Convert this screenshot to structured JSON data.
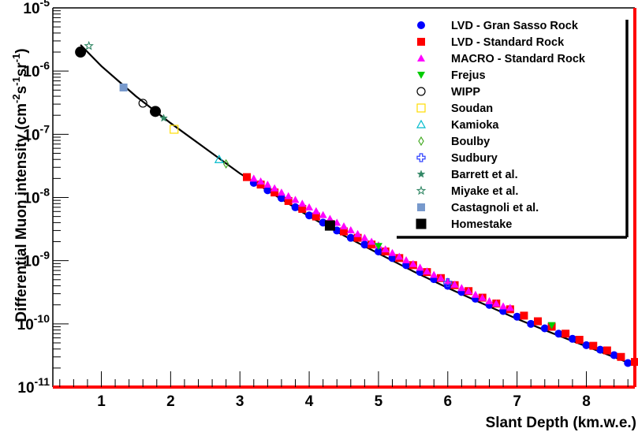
{
  "chart_data": {
    "type": "scatter",
    "xlabel": "Slant Depth (km.w.e.)",
    "ylabel_parts": [
      "Differential Muon intensity (cm",
      "-2",
      "s",
      "-1",
      "sr",
      "-1",
      ")"
    ],
    "xlim": [
      0.3,
      8.7
    ],
    "ylim_log10": [
      -11,
      -5
    ],
    "yscale": "log",
    "x_ticks": [
      1,
      2,
      3,
      4,
      5,
      6,
      7,
      8
    ],
    "y_ticks": [
      {
        "base": "10",
        "exp": "-11"
      },
      {
        "base": "10",
        "exp": "-10"
      },
      {
        "base": "10",
        "exp": "-9"
      },
      {
        "base": "10",
        "exp": "-8"
      },
      {
        "base": "10",
        "exp": "-7"
      },
      {
        "base": "10",
        "exp": "-6"
      },
      {
        "base": "10",
        "exp": "-5"
      }
    ],
    "legend_position": "top-right",
    "fit_curve": [
      [
        0.7,
        2.6e-06
      ],
      [
        1.0,
        1.2e-06
      ],
      [
        1.5,
        4e-07
      ],
      [
        2.0,
        1.5e-07
      ],
      [
        2.5,
        6e-08
      ],
      [
        3.0,
        2.4e-08
      ],
      [
        3.5,
        1.1e-08
      ],
      [
        4.0,
        5e-09
      ],
      [
        4.5,
        2.5e-09
      ],
      [
        5.0,
        1.3e-09
      ],
      [
        5.5,
        6.8e-10
      ],
      [
        6.0,
        3.7e-10
      ],
      [
        6.5,
        2.1e-10
      ],
      [
        7.0,
        1.2e-10
      ],
      [
        7.5,
        7.2e-11
      ],
      [
        8.0,
        4.4e-11
      ],
      [
        8.5,
        2.7e-11
      ],
      [
        8.7,
        2.2e-11
      ]
    ],
    "series": [
      {
        "name": "LVD - Gran Sasso Rock",
        "marker": "circle",
        "color": "#0000ff",
        "filled": true,
        "points": [
          [
            3.2,
            1.7e-08
          ],
          [
            3.4,
            1.3e-08
          ],
          [
            3.6,
            9.8e-09
          ],
          [
            3.8,
            7e-09
          ],
          [
            4.0,
            5.2e-09
          ],
          [
            4.2,
            4e-09
          ],
          [
            4.4,
            3e-09
          ],
          [
            4.6,
            2.3e-09
          ],
          [
            4.8,
            1.8e-09
          ],
          [
            5.0,
            1.4e-09
          ],
          [
            5.2,
            1.1e-09
          ],
          [
            5.4,
            8.5e-10
          ],
          [
            5.6,
            6.6e-10
          ],
          [
            5.8,
            5.1e-10
          ],
          [
            6.0,
            4e-10
          ],
          [
            6.2,
            3.2e-10
          ],
          [
            6.4,
            2.5e-10
          ],
          [
            6.6,
            2e-10
          ],
          [
            6.8,
            1.6e-10
          ],
          [
            7.0,
            1.3e-10
          ],
          [
            7.2,
            1e-10
          ],
          [
            7.4,
            8.5e-11
          ],
          [
            7.6,
            7e-11
          ],
          [
            7.8,
            5.8e-11
          ],
          [
            8.0,
            4.6e-11
          ],
          [
            8.2,
            3.9e-11
          ],
          [
            8.4,
            3.2e-11
          ],
          [
            8.6,
            2.4e-11
          ]
        ]
      },
      {
        "name": "LVD - Standard Rock",
        "marker": "square",
        "color": "#ff0000",
        "filled": true,
        "points": [
          [
            3.1,
            2.1e-08
          ],
          [
            3.3,
            1.6e-08
          ],
          [
            3.5,
            1.2e-08
          ],
          [
            3.7,
            8.8e-09
          ],
          [
            3.9,
            6.6e-09
          ],
          [
            4.1,
            5e-09
          ],
          [
            4.3,
            3.8e-09
          ],
          [
            4.5,
            2.9e-09
          ],
          [
            4.7,
            2.3e-09
          ],
          [
            4.9,
            1.8e-09
          ],
          [
            5.1,
            1.4e-09
          ],
          [
            5.3,
            1.1e-09
          ],
          [
            5.5,
            8.5e-10
          ],
          [
            5.7,
            6.6e-10
          ],
          [
            5.9,
            5.3e-10
          ],
          [
            6.1,
            4.1e-10
          ],
          [
            6.3,
            3.3e-10
          ],
          [
            6.5,
            2.6e-10
          ],
          [
            6.7,
            2.1e-10
          ],
          [
            6.9,
            1.7e-10
          ],
          [
            7.1,
            1.35e-10
          ],
          [
            7.3,
            1.1e-10
          ],
          [
            7.5,
            9e-11
          ],
          [
            7.7,
            7e-11
          ],
          [
            7.9,
            5.6e-11
          ],
          [
            8.1,
            4.5e-11
          ],
          [
            8.3,
            3.8e-11
          ],
          [
            8.5,
            3e-11
          ],
          [
            8.7,
            2.5e-11
          ]
        ]
      },
      {
        "name": "MACRO - Standard Rock",
        "marker": "triangle-up",
        "color": "#ff00ff",
        "filled": true,
        "points": [
          [
            3.2,
            2e-08
          ],
          [
            3.3,
            1.8e-08
          ],
          [
            3.4,
            1.6e-08
          ],
          [
            3.5,
            1.4e-08
          ],
          [
            3.6,
            1.2e-08
          ],
          [
            3.7,
            1.05e-08
          ],
          [
            3.8,
            9.2e-09
          ],
          [
            3.9,
            8e-09
          ],
          [
            4.0,
            7e-09
          ],
          [
            4.1,
            6.1e-09
          ],
          [
            4.2,
            5.3e-09
          ],
          [
            4.3,
            4.6e-09
          ],
          [
            4.4,
            4e-09
          ],
          [
            4.5,
            3.5e-09
          ],
          [
            4.6,
            3.05e-09
          ],
          [
            4.7,
            2.65e-09
          ],
          [
            4.8,
            2.3e-09
          ],
          [
            4.9,
            2e-09
          ],
          [
            5.0,
            1.75e-09
          ],
          [
            5.1,
            1.52e-09
          ],
          [
            5.2,
            1.33e-09
          ],
          [
            5.3,
            1.16e-09
          ],
          [
            5.4,
            1.02e-09
          ],
          [
            5.5,
            8.9e-10
          ],
          [
            5.6,
            7.8e-10
          ],
          [
            5.7,
            6.8e-10
          ],
          [
            5.8,
            6e-10
          ],
          [
            5.9,
            5.3e-10
          ],
          [
            6.0,
            4.7e-10
          ],
          [
            6.1,
            4.2e-10
          ],
          [
            6.2,
            3.7e-10
          ],
          [
            6.3,
            3.3e-10
          ],
          [
            6.4,
            2.9e-10
          ],
          [
            6.5,
            2.6e-10
          ],
          [
            6.6,
            2.3e-10
          ],
          [
            6.7,
            2.1e-10
          ],
          [
            6.8,
            1.9e-10
          ],
          [
            6.9,
            1.8e-10
          ]
        ]
      },
      {
        "name": "Frejus",
        "marker": "triangle-down",
        "color": "#00cc00",
        "filled": true,
        "points": [
          [
            5.0,
            1.7e-09
          ],
          [
            7.5,
            9.5e-11
          ]
        ]
      },
      {
        "name": "WIPP",
        "marker": "circle",
        "color": "#000000",
        "filled": false,
        "points": [
          [
            1.6,
            3.1e-07
          ]
        ]
      },
      {
        "name": "Soudan",
        "marker": "square",
        "color": "#ffdd00",
        "filled": false,
        "points": [
          [
            2.05,
            1.2e-07
          ]
        ]
      },
      {
        "name": "Kamioka",
        "marker": "triangle-up",
        "color": "#00bbcc",
        "filled": false,
        "points": [
          [
            2.7,
            4e-08
          ]
        ]
      },
      {
        "name": "Boulby",
        "marker": "diamond",
        "color": "#44aa22",
        "filled": false,
        "points": [
          [
            2.8,
            3.4e-08
          ]
        ]
      },
      {
        "name": "Sudbury",
        "marker": "cross",
        "color": "#3344ff",
        "filled": false,
        "points": [
          [
            6.0,
            4.5e-10
          ]
        ]
      },
      {
        "name": "Barrett et al.",
        "marker": "star",
        "color": "#338866",
        "filled": true,
        "points": [
          [
            1.9,
            1.8e-07
          ]
        ]
      },
      {
        "name": "Miyake et al.",
        "marker": "star",
        "color": "#338866",
        "filled": false,
        "points": [
          [
            0.82,
            2.5e-06
          ]
        ]
      },
      {
        "name": "Castagnoli et al.",
        "marker": "square",
        "color": "#7799cc",
        "filled": true,
        "points": [
          [
            1.32,
            5.5e-07
          ]
        ]
      },
      {
        "name": "Homestake",
        "marker": "square",
        "color": "#000000",
        "filled": true,
        "points": [
          [
            4.3,
            3.6e-09
          ]
        ]
      },
      {
        "name": "",
        "marker": "circle-big",
        "color": "#000000",
        "filled": true,
        "in_legend": false,
        "points": [
          [
            0.7,
            2e-06
          ],
          [
            1.78,
            2.3e-07
          ]
        ]
      }
    ]
  },
  "colors": {
    "frame_right": "#ff0000",
    "frame_bottom": "#ff0000",
    "axis": "#000000",
    "fit_line": "#000000"
  }
}
